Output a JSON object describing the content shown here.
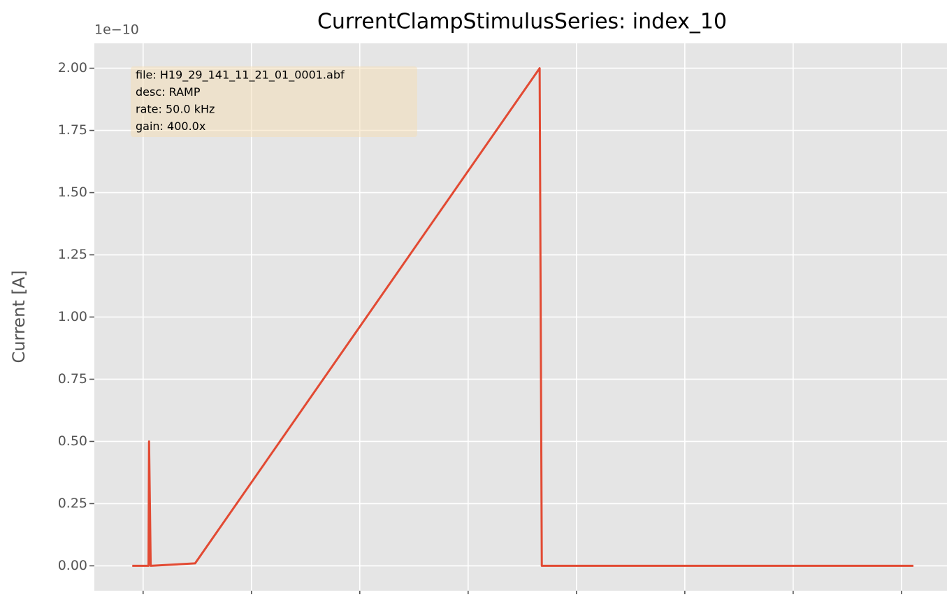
{
  "chart_data": {
    "type": "line",
    "title": "CurrentClampStimulusSeries: index_10",
    "ylabel": "Current [A]",
    "y_offset_label": "1e−10",
    "annotation": [
      "file: H19_29_141_11_21_01_0001.abf",
      "desc: RAMP",
      "rate: 50.0 kHz",
      "gain: 400.0x"
    ],
    "x": [
      -0.1,
      0.05,
      0.055,
      0.07,
      0.48,
      3.66,
      3.68,
      7.11
    ],
    "series": [
      {
        "color": "#e24a33",
        "values": [
          0,
          0,
          0.5,
          0,
          0.01,
          2.0,
          0,
          0
        ]
      }
    ],
    "xlim": [
      -0.45,
      7.42
    ],
    "xticks": [
      0,
      1,
      2,
      3,
      4,
      5,
      6,
      7
    ],
    "ylim": [
      -0.1,
      2.1
    ],
    "yticks": [
      {
        "value": 0,
        "label": "0.00"
      },
      {
        "value": 0.25,
        "label": "0.25"
      },
      {
        "value": 0.5,
        "label": "0.50"
      },
      {
        "value": 0.75,
        "label": "0.75"
      },
      {
        "value": 1.0,
        "label": "1.00"
      },
      {
        "value": 1.25,
        "label": "1.25"
      },
      {
        "value": 1.5,
        "label": "1.50"
      },
      {
        "value": 1.75,
        "label": "1.75"
      },
      {
        "value": 2.0,
        "label": "2.00"
      }
    ],
    "grid": true
  }
}
